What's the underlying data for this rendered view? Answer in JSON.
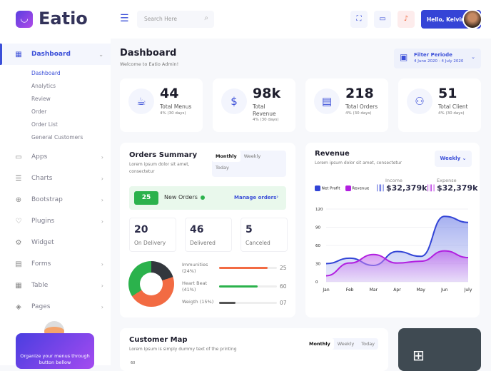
{
  "brand": {
    "name": "Eatio"
  },
  "sidebar": {
    "active": {
      "label": "Dashboard",
      "icon": "dashboard-icon"
    },
    "sub_items": [
      "Dashboard",
      "Analytics",
      "Review",
      "Order",
      "Order List",
      "General Customers"
    ],
    "items": [
      {
        "label": "Apps",
        "icon": "monitor-icon",
        "chevron": true
      },
      {
        "label": "Charts",
        "icon": "sliders-icon",
        "chevron": true
      },
      {
        "label": "Bootstrap",
        "icon": "globe-icon",
        "chevron": true
      },
      {
        "label": "Plugins",
        "icon": "heart-icon",
        "chevron": true
      },
      {
        "label": "Widget",
        "icon": "gear-icon",
        "chevron": false
      },
      {
        "label": "Forms",
        "icon": "clipboard-icon",
        "chevron": true
      },
      {
        "label": "Table",
        "icon": "table-icon",
        "chevron": true
      },
      {
        "label": "Pages",
        "icon": "layers-icon",
        "chevron": true
      }
    ],
    "promo": "Organize your menus through button bellow"
  },
  "header": {
    "search_placeholder": "Search Here",
    "greeting": "Hello, Kelvin"
  },
  "page": {
    "title": "Dashboard",
    "subtitle": "Welcome to Eatio Admin!",
    "filter_label": "Filter Periode",
    "filter_range": "4 June 2020 - 4 July 2020"
  },
  "stats": [
    {
      "value": "44",
      "label": "Total Menus",
      "delta": "4% (30 days)",
      "icon": "cup-icon"
    },
    {
      "value": "98k",
      "label": "Total Revenue",
      "delta": "4% (30 days)",
      "icon": "dollar-icon"
    },
    {
      "value": "218",
      "label": "Total Orders",
      "delta": "4% (30 days)",
      "icon": "order-icon"
    },
    {
      "value": "51",
      "label": "Total Client",
      "delta": "4% (30 days)",
      "icon": "users-icon"
    }
  ],
  "orders": {
    "title": "Orders Summary",
    "desc": "Lorem ipsum dolor sit amet, consectetur",
    "tabs": [
      "Monthly",
      "Weekly",
      "Today"
    ],
    "new_count": "25",
    "new_label": "New Orders",
    "manage": "Manage orders",
    "boxes": [
      {
        "n": "20",
        "l": "On Delivery"
      },
      {
        "n": "46",
        "l": "Delivered"
      },
      {
        "n": "5",
        "l": "Canceled"
      }
    ],
    "bars": [
      {
        "label": "Immunities (24%)",
        "value": "25",
        "fill": 0.84,
        "color": "#f26b43"
      },
      {
        "label": "Heart Beat (41%)",
        "value": "60",
        "fill": 0.67,
        "color": "#2bb24c"
      },
      {
        "label": "Weigth (15%)",
        "value": "07",
        "fill": 0.28,
        "color": "#555555"
      }
    ]
  },
  "revenue": {
    "title": "Revenue",
    "desc": "Lorem ipsum dolor sit amet, consectetur",
    "period": "Weekly",
    "income_label": "Income",
    "income": "$32,379k",
    "expense_label": "Expense",
    "expense": "$32,379k"
  },
  "chart_data": {
    "type": "area",
    "categories": [
      "Jan",
      "Feb",
      "Mar",
      "Apr",
      "May",
      "Jun",
      "July"
    ],
    "yticks": [
      0,
      30,
      60,
      90,
      120
    ],
    "ylim": [
      0,
      120
    ],
    "grid": true,
    "legend": "top-left",
    "series": [
      {
        "name": "Net Profit",
        "color": "#3244d6",
        "values": [
          30,
          39,
          27,
          50,
          42,
          108,
          98
        ]
      },
      {
        "name": "Revenue",
        "color": "#b21fe0",
        "values": [
          10,
          31,
          45,
          31,
          34,
          51,
          40
        ]
      }
    ]
  },
  "customer_map": {
    "title": "Customer Map",
    "desc": "Lorem Ipsum is simply dummy text of the printing",
    "tabs": [
      "Monthly",
      "Weekly",
      "Today"
    ],
    "ytick": "60"
  }
}
